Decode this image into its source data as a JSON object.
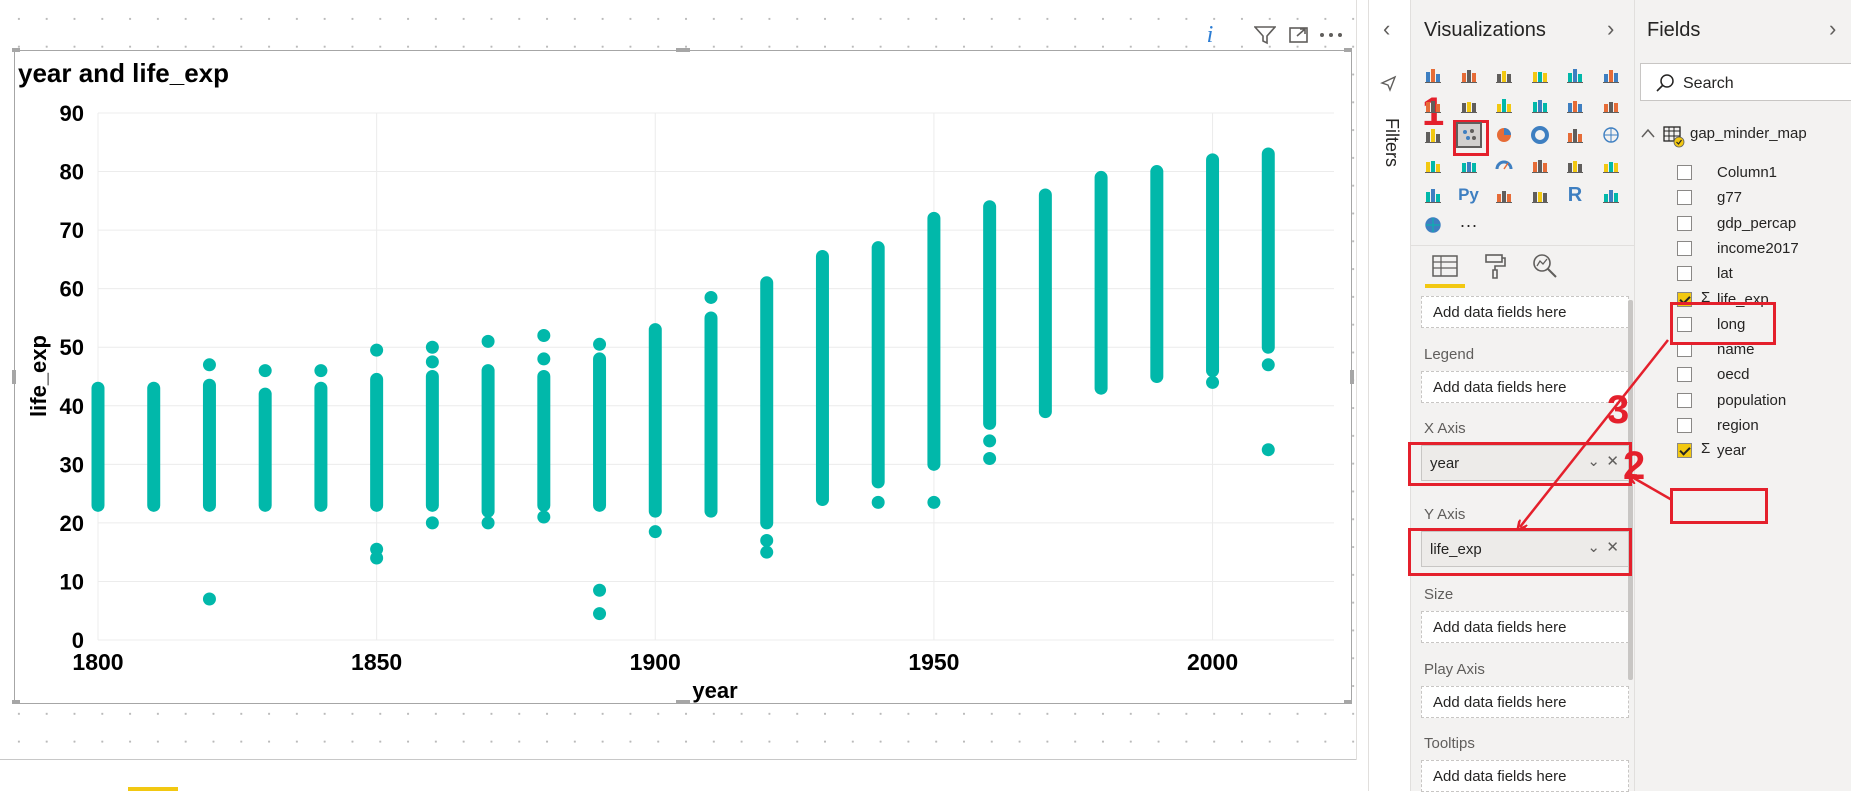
{
  "visual": {
    "title": "year and life_exp",
    "info_icon": "i"
  },
  "chart_data": {
    "type": "scatter",
    "title": "year and life_exp",
    "xlabel": "year",
    "ylabel": "life_exp",
    "xlim": [
      1800,
      2020
    ],
    "ylim": [
      0,
      90
    ],
    "x_ticks": [
      "1800",
      "1850",
      "1900",
      "1950",
      "2000"
    ],
    "y_ticks": [
      "0",
      "10",
      "20",
      "30",
      "40",
      "50",
      "60",
      "70",
      "80",
      "90"
    ],
    "grid": true,
    "marker_color": "#01b8aa",
    "series": [
      {
        "columns": [
          {
            "year": 1800,
            "min": 23,
            "max": 43,
            "outliers": []
          },
          {
            "year": 1810,
            "min": 23,
            "max": 43,
            "outliers": []
          },
          {
            "year": 1820,
            "min": 23,
            "max": 43.5,
            "outliers": [
              47,
              7
            ]
          },
          {
            "year": 1830,
            "min": 23,
            "max": 42,
            "outliers": [
              46
            ]
          },
          {
            "year": 1840,
            "min": 23,
            "max": 43,
            "outliers": [
              46
            ]
          },
          {
            "year": 1850,
            "min": 23,
            "max": 44.5,
            "outliers": [
              49.5,
              15.5,
              14
            ]
          },
          {
            "year": 1860,
            "min": 23,
            "max": 45,
            "outliers": [
              50,
              47.5,
              20
            ]
          },
          {
            "year": 1870,
            "min": 22,
            "max": 46,
            "outliers": [
              51,
              20
            ]
          },
          {
            "year": 1880,
            "min": 23,
            "max": 45,
            "outliers": [
              52,
              48,
              21
            ]
          },
          {
            "year": 1890,
            "min": 23,
            "max": 48,
            "outliers": [
              50.5,
              8.5,
              4.5
            ]
          },
          {
            "year": 1900,
            "min": 22,
            "max": 53,
            "outliers": [
              18.5
            ]
          },
          {
            "year": 1910,
            "min": 22,
            "max": 55,
            "outliers": [
              58.5
            ]
          },
          {
            "year": 1920,
            "min": 20,
            "max": 61,
            "outliers": [
              17,
              15
            ]
          },
          {
            "year": 1930,
            "min": 24,
            "max": 65.5,
            "outliers": []
          },
          {
            "year": 1940,
            "min": 27,
            "max": 67,
            "outliers": [
              23.5
            ]
          },
          {
            "year": 1950,
            "min": 30,
            "max": 72,
            "outliers": [
              23.5
            ]
          },
          {
            "year": 1960,
            "min": 37,
            "max": 74,
            "outliers": [
              34,
              31
            ]
          },
          {
            "year": 1970,
            "min": 39,
            "max": 76,
            "outliers": []
          },
          {
            "year": 1980,
            "min": 43,
            "max": 79,
            "outliers": []
          },
          {
            "year": 1990,
            "min": 45,
            "max": 80,
            "outliers": []
          },
          {
            "year": 2000,
            "min": 46,
            "max": 82,
            "outliers": [
              44
            ]
          },
          {
            "year": 2010,
            "min": 50,
            "max": 83,
            "outliers": [
              47,
              32.5
            ]
          }
        ]
      }
    ]
  },
  "filters": {
    "label": "Filters",
    "collapse_icon": "chevron-left-icon"
  },
  "visualizations": {
    "title": "Visualizations",
    "icons": [
      "stacked-bar-icon",
      "stacked-column-icon",
      "clustered-bar-icon",
      "clustered-column-icon",
      "100-bar-icon",
      "100-column-icon",
      "line-icon",
      "area-icon",
      "stacked-area-icon",
      "line-column-icon",
      "line-clustered-column-icon",
      "ribbon-icon",
      "waterfall-icon",
      "scatter-icon",
      "pie-icon",
      "donut-icon",
      "treemap-icon",
      "map-icon",
      "filled-map-icon",
      "funnel-icon",
      "gauge-icon",
      "card-icon",
      "multirow-card-icon",
      "kpi-icon",
      "slicer-icon",
      "python-visual-icon",
      "table-icon",
      "matrix-icon",
      "r-visual-icon",
      "key-influencers-icon",
      "arcgis-icon",
      "more-icon"
    ],
    "icon_text": {
      "python": "Py",
      "r": "R",
      "more": "···"
    },
    "tabs": [
      "fields-tab-icon",
      "format-tab-icon",
      "analytics-tab-icon"
    ],
    "wells": {
      "details_placeholder": "Add data fields here",
      "legend_label": "Legend",
      "legend_placeholder": "Add data fields here",
      "x_label": "X Axis",
      "x_value": "year",
      "y_label": "Y Axis",
      "y_value": "life_exp",
      "size_label": "Size",
      "size_placeholder": "Add data fields here",
      "play_label": "Play Axis",
      "play_placeholder": "Add data fields here",
      "tooltips_label": "Tooltips",
      "tooltips_placeholder": "Add data fields here"
    }
  },
  "fields": {
    "title": "Fields",
    "search_placeholder": "Search",
    "table_name": "gap_minder_map",
    "sigma": "Σ",
    "items": [
      {
        "name": "Column1",
        "checked": false,
        "sigma": false
      },
      {
        "name": "g77",
        "checked": false,
        "sigma": false
      },
      {
        "name": "gdp_percap",
        "checked": false,
        "sigma": false
      },
      {
        "name": "income2017",
        "checked": false,
        "sigma": false
      },
      {
        "name": "lat",
        "checked": false,
        "sigma": false
      },
      {
        "name": "life_exp",
        "checked": true,
        "sigma": true
      },
      {
        "name": "long",
        "checked": false,
        "sigma": false
      },
      {
        "name": "name",
        "checked": false,
        "sigma": false
      },
      {
        "name": "oecd",
        "checked": false,
        "sigma": false
      },
      {
        "name": "population",
        "checked": false,
        "sigma": false
      },
      {
        "name": "region",
        "checked": false,
        "sigma": false
      },
      {
        "name": "year",
        "checked": true,
        "sigma": true
      }
    ]
  },
  "annotations": {
    "step1": "1",
    "step2": "2",
    "step3": "3",
    "color": "#e4202c"
  }
}
